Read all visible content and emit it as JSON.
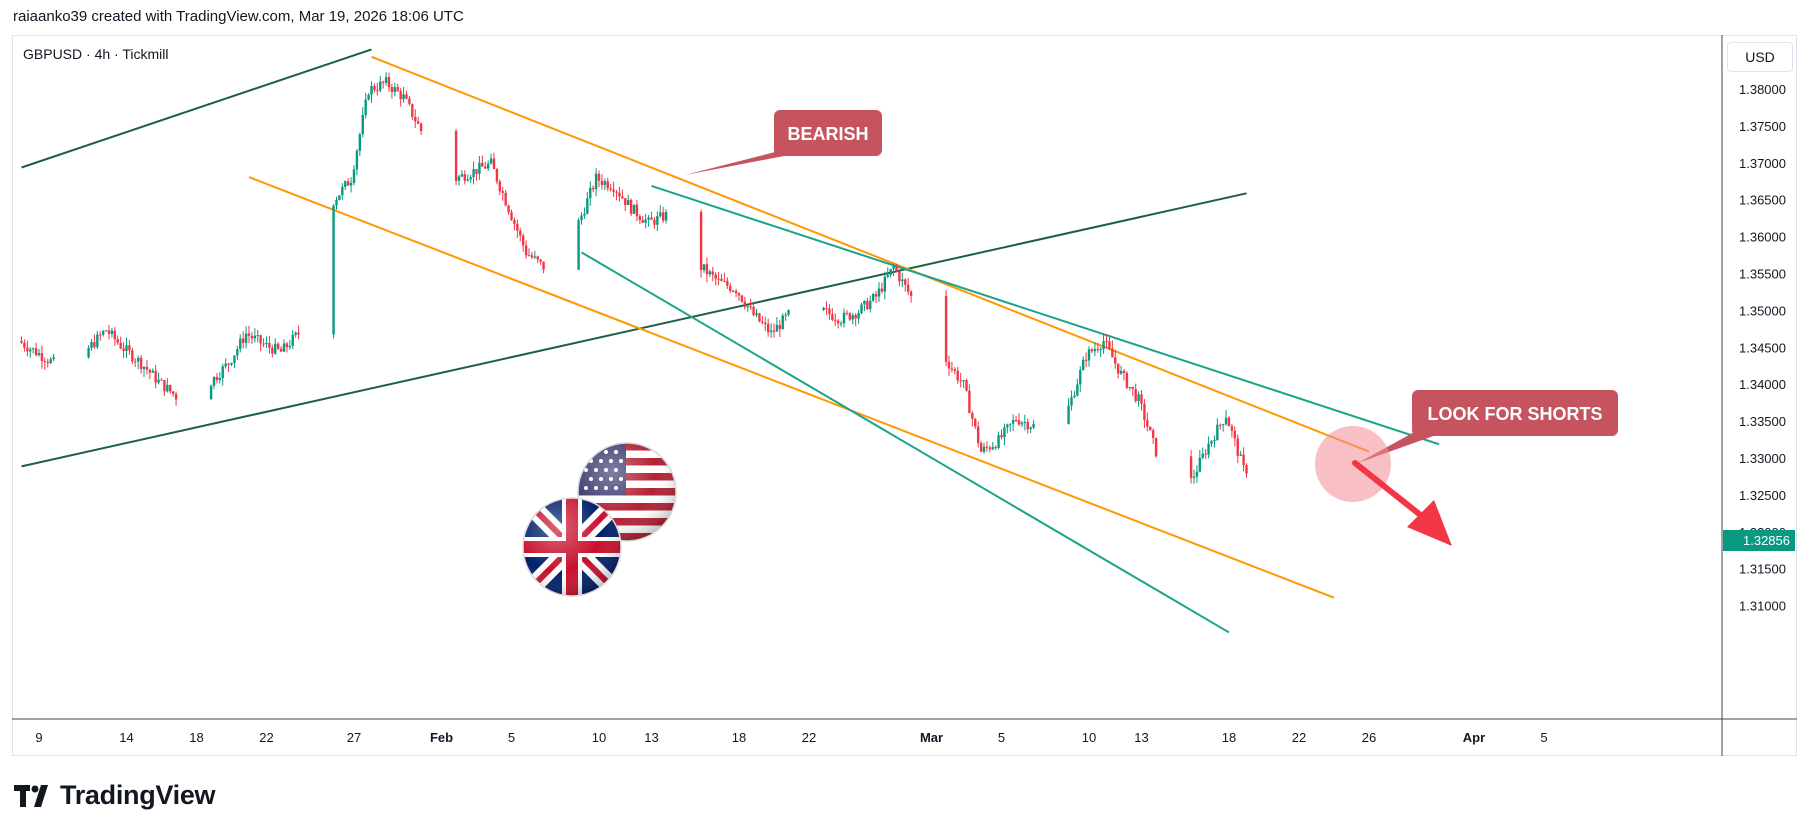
{
  "header": {
    "text": "raiaanko39 created with TradingView.com, Mar 19, 2026 18:06 UTC"
  },
  "symbol": "GBPUSD · 4h · Tickmill",
  "currency_button": "USD",
  "footer": {
    "brand": "TradingView",
    "logo_icon": "tradingview-logo-icon"
  },
  "colors": {
    "up": "#089981",
    "down": "#f23645",
    "channel": "#ff9800",
    "wedge": "#1e5f46",
    "teal": "#1ba38a",
    "callout": "#c6545f",
    "current_price_bg": "#089981",
    "arrow": "#f23645"
  },
  "annotations": {
    "bearish": "BEARISH",
    "shorts": "LOOK FOR SHORTS",
    "flags": [
      "us-flag-icon",
      "uk-flag-icon"
    ]
  },
  "chart_data": {
    "type": "candlestick",
    "symbol": "GBPUSD",
    "timeframe": "4h",
    "ylim": [
      1.3065,
      1.3855
    ],
    "y_ticks": [
      "1.38000",
      "1.37500",
      "1.37000",
      "1.36500",
      "1.36000",
      "1.35500",
      "1.35000",
      "1.34500",
      "1.34000",
      "1.33500",
      "1.33000",
      "1.32500",
      "1.32000",
      "1.31500",
      "1.31000"
    ],
    "current_price": "1.32856",
    "x_ticks": [
      {
        "label": "9",
        "bold": false
      },
      {
        "label": "14",
        "bold": false
      },
      {
        "label": "18",
        "bold": false
      },
      {
        "label": "22",
        "bold": false
      },
      {
        "label": "27",
        "bold": false
      },
      {
        "label": "Feb",
        "bold": true
      },
      {
        "label": "5",
        "bold": false
      },
      {
        "label": "10",
        "bold": false
      },
      {
        "label": "13",
        "bold": false
      },
      {
        "label": "18",
        "bold": false
      },
      {
        "label": "22",
        "bold": false
      },
      {
        "label": "Mar",
        "bold": true
      },
      {
        "label": "5",
        "bold": false
      },
      {
        "label": "10",
        "bold": false
      },
      {
        "label": "13",
        "bold": false
      },
      {
        "label": "18",
        "bold": false
      },
      {
        "label": "22",
        "bold": false
      },
      {
        "label": "26",
        "bold": false
      },
      {
        "label": "Apr",
        "bold": true
      },
      {
        "label": "5",
        "bold": false
      }
    ],
    "x_tick_dates": [
      "2026-01-09",
      "2026-01-14",
      "2026-01-18",
      "2026-01-22",
      "2026-01-27",
      "2026-02-01",
      "2026-02-05",
      "2026-02-10",
      "2026-02-13",
      "2026-02-18",
      "2026-02-22",
      "2026-03-01",
      "2026-03-05",
      "2026-03-10",
      "2026-03-13",
      "2026-03-18",
      "2026-03-22",
      "2026-03-26",
      "2026-04-01",
      "2026-04-05"
    ],
    "price_path": [
      [
        "2026-01-08",
        1.346
      ],
      [
        "2026-01-09",
        1.3445
      ],
      [
        "2026-01-10",
        1.343
      ],
      [
        "2026-01-12",
        1.345
      ],
      [
        "2026-01-13",
        1.3475
      ],
      [
        "2026-01-14",
        1.345
      ],
      [
        "2026-01-15",
        1.343
      ],
      [
        "2026-01-16",
        1.3405
      ],
      [
        "2026-01-17",
        1.3385
      ],
      [
        "2026-01-18",
        1.34
      ],
      [
        "2026-01-19",
        1.3405
      ],
      [
        "2026-01-20",
        1.343
      ],
      [
        "2026-01-21",
        1.347
      ],
      [
        "2026-01-22",
        1.3455
      ],
      [
        "2026-01-23",
        1.3445
      ],
      [
        "2026-01-24",
        1.347
      ],
      [
        "2026-01-25",
        1.353
      ],
      [
        "2026-01-26",
        1.365
      ],
      [
        "2026-01-27",
        1.368
      ],
      [
        "2026-01-28",
        1.38
      ],
      [
        "2026-01-29",
        1.381
      ],
      [
        "2026-01-30",
        1.379
      ],
      [
        "2026-01-31",
        1.3745
      ],
      [
        "2026-02-01",
        1.371
      ],
      [
        "2026-02-02",
        1.368
      ],
      [
        "2026-02-03",
        1.369
      ],
      [
        "2026-02-04",
        1.37
      ],
      [
        "2026-02-05",
        1.364
      ],
      [
        "2026-02-06",
        1.358
      ],
      [
        "2026-02-07",
        1.356
      ],
      [
        "2026-02-09",
        1.362
      ],
      [
        "2026-02-10",
        1.368
      ],
      [
        "2026-02-11",
        1.367
      ],
      [
        "2026-02-12",
        1.364
      ],
      [
        "2026-02-13",
        1.362
      ],
      [
        "2026-02-14",
        1.363
      ],
      [
        "2026-02-15",
        1.361
      ],
      [
        "2026-02-16",
        1.356
      ],
      [
        "2026-02-17",
        1.354
      ],
      [
        "2026-02-18",
        1.353
      ],
      [
        "2026-02-19",
        1.3495
      ],
      [
        "2026-02-20",
        1.347
      ],
      [
        "2026-02-21",
        1.3495
      ],
      [
        "2026-02-22",
        1.351
      ],
      [
        "2026-02-23",
        1.35
      ],
      [
        "2026-02-24",
        1.349
      ],
      [
        "2026-02-25",
        1.35
      ],
      [
        "2026-02-26",
        1.352
      ],
      [
        "2026-02-27",
        1.356
      ],
      [
        "2026-02-28",
        1.352
      ],
      [
        "2026-03-01",
        1.347
      ],
      [
        "2026-03-02",
        1.3435
      ],
      [
        "2026-03-03",
        1.34
      ],
      [
        "2026-03-04",
        1.331
      ],
      [
        "2026-03-05",
        1.3325
      ],
      [
        "2026-03-06",
        1.3355
      ],
      [
        "2026-03-07",
        1.3345
      ],
      [
        "2026-03-08",
        1.333
      ],
      [
        "2026-03-09",
        1.337
      ],
      [
        "2026-03-10",
        1.344
      ],
      [
        "2026-03-11",
        1.346
      ],
      [
        "2026-03-12",
        1.3415
      ],
      [
        "2026-03-13",
        1.338
      ],
      [
        "2026-03-14",
        1.331
      ],
      [
        "2026-03-15",
        1.3245
      ],
      [
        "2026-03-16",
        1.327
      ],
      [
        "2026-03-17",
        1.332
      ],
      [
        "2026-03-18",
        1.336
      ],
      [
        "2026-03-19",
        1.3286
      ]
    ],
    "trendlines": [
      {
        "name": "rising-wedge-top",
        "color": "wedge",
        "from": [
          "2026-01-08",
          1.3695
        ],
        "to": [
          "2026-01-28",
          1.3855
        ]
      },
      {
        "name": "rising-support",
        "color": "wedge",
        "from": [
          "2026-01-08",
          1.329
        ],
        "to": [
          "2026-03-19",
          1.366
        ]
      },
      {
        "name": "channel-upper",
        "color": "channel",
        "from": [
          "2026-01-28",
          1.3845
        ],
        "to": [
          "2026-03-26",
          1.331
        ]
      },
      {
        "name": "channel-lower",
        "color": "channel",
        "from": [
          "2026-01-21",
          1.3682
        ],
        "to": [
          "2026-03-24",
          1.3112
        ]
      },
      {
        "name": "teal-upper",
        "color": "teal",
        "from": [
          "2026-02-13",
          1.367
        ],
        "to": [
          "2026-03-30",
          1.332
        ]
      },
      {
        "name": "teal-lower",
        "color": "teal",
        "from": [
          "2026-02-09",
          1.358
        ],
        "to": [
          "2026-03-18",
          1.3065
        ]
      }
    ]
  }
}
